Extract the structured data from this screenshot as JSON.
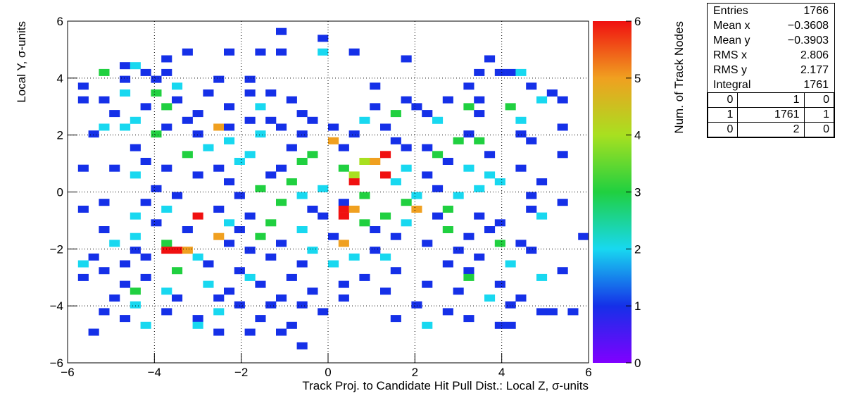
{
  "chart_data": {
    "type": "heatmap",
    "xlabel": "Track Proj. to Candidate Hit Pull Dist.: Local Z, σ-units",
    "ylabel": "Local Y, σ-units",
    "zlabel": "Num. of Track Nodes",
    "xlim": [
      -6,
      6
    ],
    "ylim": [
      -6,
      6
    ],
    "zlim": [
      0,
      6
    ],
    "xticks": [
      {
        "value": -6,
        "label": "−6"
      },
      {
        "value": -4,
        "label": "−4"
      },
      {
        "value": -2,
        "label": "−2"
      },
      0,
      2,
      4,
      6
    ],
    "yticks": [
      {
        "value": -6,
        "label": "−6"
      },
      {
        "value": -4,
        "label": "−4"
      },
      {
        "value": -2,
        "label": "−2"
      },
      0,
      2,
      4,
      6
    ],
    "zticks": [
      0,
      1,
      2,
      3,
      4,
      5,
      6
    ],
    "grid": true,
    "colormap": [
      [
        0,
        "#8000ff"
      ],
      [
        1,
        "#1530e8"
      ],
      [
        2,
        "#18d8f0"
      ],
      [
        3,
        "#20d040"
      ],
      [
        4,
        "#a8e020"
      ],
      [
        5,
        "#f0a020"
      ],
      [
        6,
        "#f01010"
      ]
    ],
    "cells": [
      [
        -1.2,
        5.52,
        1
      ],
      [
        -0.24,
        5.28,
        1
      ],
      [
        -0.24,
        4.8,
        2
      ],
      [
        0.48,
        4.8,
        1
      ],
      [
        -2.4,
        4.8,
        1
      ],
      [
        -3.36,
        4.8,
        1
      ],
      [
        -1.68,
        4.8,
        1
      ],
      [
        -1.2,
        4.8,
        1
      ],
      [
        1.68,
        4.56,
        1
      ],
      [
        3.6,
        4.56,
        1
      ],
      [
        -4.8,
        4.32,
        1
      ],
      [
        -4.56,
        4.32,
        2
      ],
      [
        -3.84,
        4.56,
        1
      ],
      [
        -5.28,
        4.08,
        3
      ],
      [
        -4.32,
        4.08,
        1
      ],
      [
        -3.84,
        4.08,
        1
      ],
      [
        3.36,
        4.08,
        1
      ],
      [
        3.84,
        4.08,
        1
      ],
      [
        4.08,
        4.08,
        1
      ],
      [
        4.32,
        4.08,
        2
      ],
      [
        -4.8,
        3.84,
        1
      ],
      [
        -4.08,
        3.84,
        1
      ],
      [
        -2.64,
        3.84,
        1
      ],
      [
        -1.92,
        3.84,
        1
      ],
      [
        0.96,
        3.6,
        1
      ],
      [
        3.12,
        3.6,
        1
      ],
      [
        4.56,
        3.6,
        1
      ],
      [
        -5.76,
        3.6,
        1
      ],
      [
        -3.6,
        3.6,
        2
      ],
      [
        -2.88,
        3.36,
        1
      ],
      [
        -1.92,
        3.36,
        1
      ],
      [
        -1.44,
        3.36,
        1
      ],
      [
        -4.08,
        3.36,
        3
      ],
      [
        -4.8,
        3.36,
        2
      ],
      [
        5.04,
        3.36,
        1
      ],
      [
        4.8,
        3.12,
        2
      ],
      [
        -5.28,
        3.12,
        1
      ],
      [
        -3.6,
        3.12,
        1
      ],
      [
        -0.96,
        3.12,
        1
      ],
      [
        1.68,
        3.12,
        1
      ],
      [
        2.64,
        3.12,
        1
      ],
      [
        3.36,
        3.12,
        1
      ],
      [
        5.28,
        3.12,
        1
      ],
      [
        -5.76,
        3.12,
        1
      ],
      [
        -4.32,
        2.88,
        1
      ],
      [
        -3.84,
        2.88,
        3
      ],
      [
        -2.4,
        2.88,
        1
      ],
      [
        -1.68,
        2.88,
        2
      ],
      [
        0.96,
        2.88,
        1
      ],
      [
        1.92,
        2.88,
        1
      ],
      [
        3.12,
        2.88,
        3
      ],
      [
        4.08,
        2.88,
        3
      ],
      [
        -5.04,
        2.64,
        1
      ],
      [
        -3.12,
        2.64,
        1
      ],
      [
        -0.72,
        2.64,
        1
      ],
      [
        1.44,
        2.64,
        3
      ],
      [
        2.16,
        2.64,
        1
      ],
      [
        3.36,
        2.64,
        1
      ],
      [
        -4.56,
        2.4,
        2
      ],
      [
        -3.36,
        2.4,
        1
      ],
      [
        -1.92,
        2.4,
        1
      ],
      [
        -1.44,
        2.4,
        1
      ],
      [
        -0.48,
        2.4,
        1
      ],
      [
        0.72,
        2.4,
        2
      ],
      [
        2.4,
        2.4,
        2
      ],
      [
        4.32,
        2.4,
        2
      ],
      [
        -5.28,
        2.16,
        2
      ],
      [
        -4.8,
        2.16,
        2
      ],
      [
        -3.84,
        2.16,
        1
      ],
      [
        -2.64,
        2.16,
        5
      ],
      [
        -2.4,
        2.16,
        1
      ],
      [
        -1.2,
        2.16,
        1
      ],
      [
        0,
        2.16,
        1
      ],
      [
        1.2,
        2.16,
        1
      ],
      [
        5.28,
        2.16,
        1
      ],
      [
        -5.52,
        1.92,
        1
      ],
      [
        -4.08,
        1.92,
        3
      ],
      [
        -3.12,
        1.92,
        1
      ],
      [
        -1.68,
        1.92,
        2
      ],
      [
        -0.72,
        1.92,
        1
      ],
      [
        0.48,
        1.92,
        1
      ],
      [
        3.12,
        1.92,
        1
      ],
      [
        4.32,
        1.92,
        1
      ],
      [
        0,
        1.68,
        5
      ],
      [
        -2.4,
        1.68,
        2
      ],
      [
        1.44,
        1.68,
        1
      ],
      [
        2.88,
        1.68,
        3
      ],
      [
        3.36,
        1.68,
        3
      ],
      [
        4.56,
        1.68,
        1
      ],
      [
        -4.56,
        1.44,
        1
      ],
      [
        -2.88,
        1.44,
        2
      ],
      [
        -0.96,
        1.44,
        1
      ],
      [
        0.24,
        1.44,
        1
      ],
      [
        1.68,
        1.44,
        1
      ],
      [
        2.16,
        1.44,
        1
      ],
      [
        -3.36,
        1.2,
        3
      ],
      [
        -1.92,
        1.2,
        2
      ],
      [
        -0.48,
        1.2,
        3
      ],
      [
        1.2,
        1.2,
        6
      ],
      [
        2.4,
        1.2,
        3
      ],
      [
        3.6,
        1.2,
        1
      ],
      [
        5.28,
        1.2,
        1
      ],
      [
        -4.32,
        0.96,
        1
      ],
      [
        -2.16,
        0.96,
        2
      ],
      [
        -0.72,
        0.96,
        3
      ],
      [
        0.72,
        0.96,
        4
      ],
      [
        0.96,
        0.96,
        5
      ],
      [
        2.64,
        0.96,
        1
      ],
      [
        -5.76,
        0.72,
        1
      ],
      [
        -5.04,
        0.72,
        1
      ],
      [
        -3.84,
        0.72,
        1
      ],
      [
        -2.64,
        0.72,
        1
      ],
      [
        -1.2,
        0.72,
        1
      ],
      [
        0.24,
        0.72,
        3
      ],
      [
        1.68,
        0.72,
        2
      ],
      [
        3.12,
        0.72,
        2
      ],
      [
        4.32,
        0.72,
        1
      ],
      [
        -4.56,
        0.48,
        2
      ],
      [
        -3.12,
        0.48,
        1
      ],
      [
        -1.44,
        0.48,
        1
      ],
      [
        0.48,
        0.48,
        4
      ],
      [
        1.2,
        0.48,
        6
      ],
      [
        2.16,
        0.48,
        1
      ],
      [
        3.6,
        0.48,
        2
      ],
      [
        -2.4,
        0.24,
        1
      ],
      [
        -0.96,
        0.24,
        3
      ],
      [
        0.48,
        0.24,
        6
      ],
      [
        1.44,
        0.24,
        2
      ],
      [
        3.84,
        0.24,
        2
      ],
      [
        4.8,
        0.24,
        1
      ],
      [
        -4.08,
        0,
        1
      ],
      [
        -1.68,
        0,
        3
      ],
      [
        -0.24,
        0,
        2
      ],
      [
        2.4,
        0,
        1
      ],
      [
        3.36,
        0,
        2
      ],
      [
        -3.6,
        -0.24,
        1
      ],
      [
        -2.16,
        -0.24,
        1
      ],
      [
        -0.72,
        -0.24,
        2
      ],
      [
        0.72,
        -0.24,
        3
      ],
      [
        1.92,
        -0.24,
        2
      ],
      [
        2.88,
        -0.24,
        2
      ],
      [
        4.56,
        -0.24,
        1
      ],
      [
        -5.28,
        -0.48,
        1
      ],
      [
        -4.32,
        -0.48,
        1
      ],
      [
        -1.2,
        -0.48,
        3
      ],
      [
        0.24,
        -0.48,
        1
      ],
      [
        1.68,
        -0.48,
        3
      ],
      [
        5.28,
        -0.48,
        1
      ],
      [
        -5.76,
        -0.72,
        1
      ],
      [
        -3.84,
        -0.72,
        2
      ],
      [
        -2.64,
        -0.72,
        1
      ],
      [
        -0.48,
        -0.72,
        1
      ],
      [
        0.24,
        -0.72,
        6
      ],
      [
        0.48,
        -0.72,
        5
      ],
      [
        1.92,
        -0.72,
        5
      ],
      [
        2.64,
        -0.72,
        3
      ],
      [
        4.56,
        -0.72,
        1
      ],
      [
        -4.56,
        -0.96,
        2
      ],
      [
        -3.12,
        -0.96,
        6
      ],
      [
        -1.92,
        -0.96,
        1
      ],
      [
        -0.24,
        -0.96,
        1
      ],
      [
        0.24,
        -0.96,
        6
      ],
      [
        1.2,
        -0.96,
        3
      ],
      [
        2.4,
        -0.96,
        1
      ],
      [
        3.36,
        -0.96,
        1
      ],
      [
        4.8,
        -0.96,
        2
      ],
      [
        -4.08,
        -1.2,
        1
      ],
      [
        -2.4,
        -1.2,
        2
      ],
      [
        -1.44,
        -1.2,
        3
      ],
      [
        0.72,
        -1.2,
        3
      ],
      [
        1.68,
        -1.2,
        2
      ],
      [
        3.84,
        -1.2,
        1
      ],
      [
        -5.28,
        -1.44,
        1
      ],
      [
        -3.36,
        -1.44,
        1
      ],
      [
        -2.16,
        -1.44,
        1
      ],
      [
        -0.72,
        -1.44,
        2
      ],
      [
        0.96,
        -1.44,
        1
      ],
      [
        2.64,
        -1.44,
        3
      ],
      [
        3.6,
        -1.44,
        1
      ],
      [
        -4.56,
        -1.68,
        2
      ],
      [
        -2.64,
        -1.68,
        5
      ],
      [
        -1.68,
        -1.68,
        3
      ],
      [
        0,
        -1.68,
        1
      ],
      [
        1.44,
        -1.68,
        1
      ],
      [
        3.12,
        -1.68,
        1
      ],
      [
        5.76,
        -1.68,
        1
      ],
      [
        -5.04,
        -1.92,
        2
      ],
      [
        -3.84,
        -1.92,
        3
      ],
      [
        -2.4,
        -1.92,
        1
      ],
      [
        -1.2,
        -1.92,
        1
      ],
      [
        0.24,
        -1.92,
        5
      ],
      [
        2.16,
        -1.92,
        1
      ],
      [
        3.84,
        -1.92,
        3
      ],
      [
        4.32,
        -1.92,
        1
      ],
      [
        -3.84,
        -2.16,
        6
      ],
      [
        -3.6,
        -2.16,
        6
      ],
      [
        -3.36,
        -2.16,
        5
      ],
      [
        -4.56,
        -2.16,
        1
      ],
      [
        -1.92,
        -2.16,
        1
      ],
      [
        -0.48,
        -2.16,
        2
      ],
      [
        0.96,
        -2.16,
        1
      ],
      [
        2.88,
        -2.16,
        1
      ],
      [
        4.56,
        -2.16,
        1
      ],
      [
        -5.52,
        -2.4,
        1
      ],
      [
        -4.32,
        -2.4,
        1
      ],
      [
        -3.12,
        -2.4,
        2
      ],
      [
        -1.44,
        -2.4,
        1
      ],
      [
        0.48,
        -2.4,
        2
      ],
      [
        1.2,
        -2.4,
        2
      ],
      [
        3.36,
        -2.4,
        1
      ],
      [
        -5.76,
        -2.64,
        2
      ],
      [
        -4.8,
        -2.64,
        1
      ],
      [
        -2.88,
        -2.64,
        1
      ],
      [
        -0.72,
        -2.64,
        1
      ],
      [
        0,
        -2.64,
        2
      ],
      [
        2.64,
        -2.64,
        1
      ],
      [
        4.08,
        -2.64,
        2
      ],
      [
        -5.28,
        -2.88,
        1
      ],
      [
        -3.6,
        -2.88,
        3
      ],
      [
        -2.16,
        -2.88,
        1
      ],
      [
        1.44,
        -2.88,
        1
      ],
      [
        3.12,
        -2.88,
        1
      ],
      [
        5.28,
        -2.88,
        1
      ],
      [
        -5.76,
        -3.12,
        1
      ],
      [
        -4.32,
        -3.12,
        1
      ],
      [
        -1.92,
        -3.12,
        2
      ],
      [
        -0.96,
        -3.12,
        1
      ],
      [
        0.72,
        -3.12,
        1
      ],
      [
        3.12,
        -3.12,
        3
      ],
      [
        4.8,
        -3.12,
        2
      ],
      [
        -4.8,
        -3.36,
        1
      ],
      [
        -2.88,
        -3.36,
        2
      ],
      [
        -1.68,
        -3.36,
        1
      ],
      [
        0.24,
        -3.36,
        1
      ],
      [
        2.16,
        -3.36,
        1
      ],
      [
        3.84,
        -3.36,
        1
      ],
      [
        -4.56,
        -3.6,
        3
      ],
      [
        -3.84,
        -3.6,
        2
      ],
      [
        -2.4,
        -3.6,
        1
      ],
      [
        -0.48,
        -3.6,
        1
      ],
      [
        1.2,
        -3.6,
        1
      ],
      [
        2.88,
        -3.6,
        1
      ],
      [
        -5.04,
        -3.84,
        1
      ],
      [
        -3.6,
        -3.84,
        1
      ],
      [
        -2.64,
        -3.84,
        1
      ],
      [
        -1.2,
        -3.84,
        1
      ],
      [
        0.24,
        -3.84,
        1
      ],
      [
        3.6,
        -3.84,
        2
      ],
      [
        4.32,
        -3.84,
        1
      ],
      [
        -4.56,
        -4.08,
        2
      ],
      [
        -2.16,
        -4.08,
        1
      ],
      [
        -1.44,
        -4.08,
        1
      ],
      [
        -0.72,
        -4.08,
        1
      ],
      [
        1.92,
        -4.08,
        1
      ],
      [
        4.08,
        -4.08,
        1
      ],
      [
        4.8,
        -4.32,
        1
      ],
      [
        5.04,
        -4.32,
        1
      ],
      [
        -5.28,
        -4.32,
        1
      ],
      [
        -3.84,
        -4.32,
        1
      ],
      [
        -2.64,
        -4.32,
        2
      ],
      [
        -0.24,
        -4.32,
        1
      ],
      [
        2.64,
        -4.32,
        1
      ],
      [
        5.52,
        -4.32,
        1
      ],
      [
        -4.8,
        -4.56,
        1
      ],
      [
        -3.12,
        -4.56,
        1
      ],
      [
        -1.68,
        -4.56,
        1
      ],
      [
        1.44,
        -4.56,
        1
      ],
      [
        3.12,
        -4.56,
        1
      ],
      [
        -4.32,
        -4.8,
        2
      ],
      [
        -3.12,
        -4.8,
        2
      ],
      [
        -0.96,
        -4.8,
        1
      ],
      [
        2.16,
        -4.8,
        2
      ],
      [
        3.84,
        -4.8,
        1
      ],
      [
        4.08,
        -4.8,
        1
      ],
      [
        -5.52,
        -5.04,
        1
      ],
      [
        -2.64,
        -5.04,
        1
      ],
      [
        -1.2,
        -5.04,
        1
      ],
      [
        -1.92,
        -5.04,
        1
      ],
      [
        -0.72,
        -5.52,
        1
      ]
    ],
    "stats": {
      "rows": [
        [
          "Entries",
          "1766"
        ],
        [
          "Mean x",
          "−0.3608"
        ],
        [
          "Mean y",
          "−0.3903"
        ],
        [
          "RMS x",
          "2.806"
        ],
        [
          "RMS y",
          "2.177"
        ],
        [
          "Integral",
          "1761"
        ]
      ],
      "overflow": [
        [
          "0",
          "1",
          "0"
        ],
        [
          "1",
          "1761",
          "1"
        ],
        [
          "0",
          "2",
          "0"
        ]
      ]
    }
  }
}
